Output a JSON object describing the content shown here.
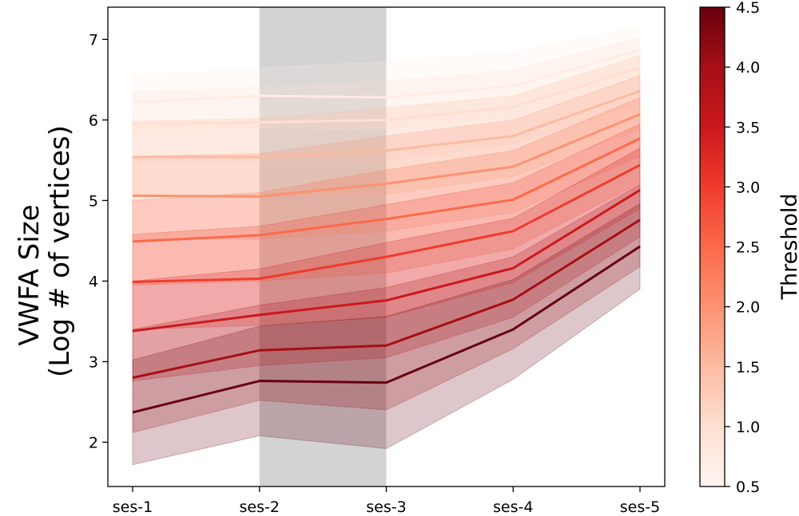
{
  "chart_data": {
    "type": "line",
    "ylabel_lines": [
      "VWFA Size",
      "(Log # of vertices)"
    ],
    "xlabel": "",
    "x": [
      "ses-1",
      "ses-2",
      "ses-3",
      "ses-4",
      "ses-5"
    ],
    "ylim": [
      1.45,
      7.4
    ],
    "yticks": [
      2,
      3,
      4,
      5,
      6,
      7
    ],
    "highlight_span": {
      "from": "ses-2",
      "to": "ses-3",
      "color": "#d3d3d3"
    },
    "colorbar": {
      "label": "Threshold",
      "min": 0.5,
      "max": 4.5,
      "ticks": [
        "0.5",
        "1.0",
        "1.5",
        "2.0",
        "2.5",
        "3.0",
        "3.5",
        "4.0",
        "4.5"
      ],
      "colormap": "Reds",
      "stops": [
        "#fff5f0",
        "#fee0d2",
        "#fcbba1",
        "#fc9272",
        "#fb6a4a",
        "#ef3b2c",
        "#cb181d",
        "#a50f15",
        "#67000d"
      ]
    },
    "series": [
      {
        "threshold": 4.5,
        "values": [
          2.37,
          2.76,
          2.74,
          3.4,
          4.43
        ],
        "lower": [
          1.72,
          2.08,
          1.92,
          2.78,
          3.9
        ],
        "upper": [
          3.02,
          3.44,
          3.56,
          4.02,
          4.96
        ]
      },
      {
        "threshold": 4.0,
        "values": [
          2.8,
          3.14,
          3.2,
          3.77,
          4.76
        ],
        "lower": [
          2.12,
          2.52,
          2.4,
          3.16,
          4.18
        ],
        "upper": [
          3.4,
          3.7,
          3.92,
          4.3,
          5.2
        ]
      },
      {
        "threshold": 3.5,
        "values": [
          3.38,
          3.58,
          3.76,
          4.16,
          5.13
        ],
        "lower": [
          2.76,
          2.95,
          3.05,
          3.55,
          4.55
        ],
        "upper": [
          4.0,
          4.15,
          4.48,
          4.78,
          5.65
        ]
      },
      {
        "threshold": 3.0,
        "values": [
          3.99,
          4.03,
          4.3,
          4.62,
          5.44
        ],
        "lower": [
          3.4,
          3.45,
          3.55,
          3.98,
          4.9
        ],
        "upper": [
          4.58,
          4.68,
          4.95,
          5.22,
          5.95
        ]
      },
      {
        "threshold": 2.5,
        "values": [
          4.49,
          4.57,
          4.77,
          5.01,
          5.77
        ],
        "lower": [
          3.95,
          4.0,
          4.1,
          4.4,
          5.22
        ],
        "upper": [
          5.0,
          5.1,
          5.38,
          5.62,
          6.28
        ]
      },
      {
        "threshold": 2.0,
        "values": [
          5.06,
          5.05,
          5.21,
          5.42,
          6.07
        ],
        "lower": [
          4.52,
          4.52,
          4.62,
          4.85,
          5.55
        ],
        "upper": [
          5.55,
          5.58,
          5.8,
          6.0,
          6.55
        ]
      },
      {
        "threshold": 1.5,
        "values": [
          5.54,
          5.54,
          5.62,
          5.8,
          6.36
        ],
        "lower": [
          5.05,
          5.05,
          5.08,
          5.3,
          5.88
        ],
        "upper": [
          5.98,
          6.02,
          6.15,
          6.3,
          6.8
        ]
      },
      {
        "threshold": 1.0,
        "values": [
          5.95,
          5.97,
          6.0,
          6.16,
          6.65
        ],
        "lower": [
          5.5,
          5.5,
          5.5,
          5.7,
          6.2
        ],
        "upper": [
          6.35,
          6.4,
          6.48,
          6.62,
          7.02
        ]
      },
      {
        "threshold": 0.7,
        "values": [
          6.22,
          6.3,
          6.28,
          6.42,
          6.87
        ],
        "lower": [
          5.85,
          5.9,
          5.88,
          6.05,
          6.5
        ],
        "upper": [
          6.55,
          6.65,
          6.72,
          6.85,
          7.15
        ]
      }
    ]
  }
}
